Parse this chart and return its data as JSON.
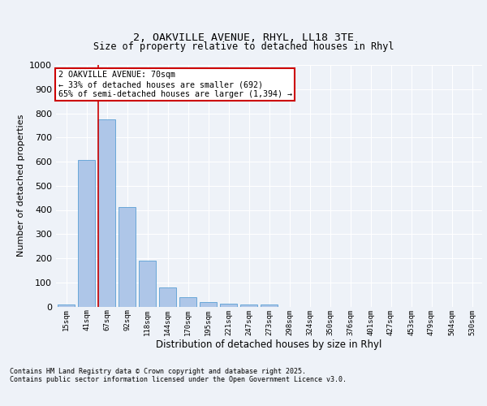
{
  "title_line1": "2, OAKVILLE AVENUE, RHYL, LL18 3TE",
  "title_line2": "Size of property relative to detached houses in Rhyl",
  "xlabel": "Distribution of detached houses by size in Rhyl",
  "ylabel": "Number of detached properties",
  "categories": [
    "15sqm",
    "41sqm",
    "67sqm",
    "92sqm",
    "118sqm",
    "144sqm",
    "170sqm",
    "195sqm",
    "221sqm",
    "247sqm",
    "273sqm",
    "298sqm",
    "324sqm",
    "350sqm",
    "376sqm",
    "401sqm",
    "427sqm",
    "453sqm",
    "479sqm",
    "504sqm",
    "530sqm"
  ],
  "values": [
    10,
    607,
    775,
    413,
    190,
    78,
    40,
    17,
    13,
    10,
    7,
    0,
    0,
    0,
    0,
    0,
    0,
    0,
    0,
    0,
    0
  ],
  "bar_color": "#aec6e8",
  "bar_edge_color": "#5a9fd4",
  "vline_color": "#cc0000",
  "annotation_title": "2 OAKVILLE AVENUE: 70sqm",
  "annotation_line1": "← 33% of detached houses are smaller (692)",
  "annotation_line2": "65% of semi-detached houses are larger (1,394) →",
  "annotation_box_color": "#ffffff",
  "annotation_box_edge": "#cc0000",
  "ylim": [
    0,
    1000
  ],
  "yticks": [
    0,
    100,
    200,
    300,
    400,
    500,
    600,
    700,
    800,
    900,
    1000
  ],
  "background_color": "#eef2f8",
  "grid_color": "#ffffff",
  "footer_line1": "Contains HM Land Registry data © Crown copyright and database right 2025.",
  "footer_line2": "Contains public sector information licensed under the Open Government Licence v3.0."
}
